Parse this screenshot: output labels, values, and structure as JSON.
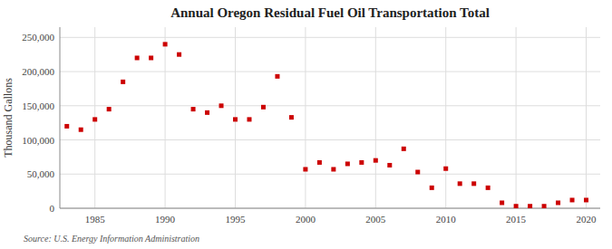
{
  "chart_data": {
    "type": "scatter",
    "title": "Annual Oregon Residual Fuel Oil Transportation Total",
    "y_label": "Thousand Gallons",
    "annotations": [
      "Source: U.S. Energy Information Administration"
    ],
    "x": [
      1983,
      1984,
      1985,
      1986,
      1987,
      1988,
      1989,
      1990,
      1991,
      1992,
      1993,
      1994,
      1995,
      1996,
      1997,
      1998,
      1999,
      2000,
      2001,
      2002,
      2003,
      2004,
      2005,
      2006,
      2007,
      2008,
      2009,
      2010,
      2011,
      2012,
      2013,
      2014,
      2015,
      2016,
      2017,
      2018,
      2019,
      2020
    ],
    "values": [
      120000,
      115000,
      130000,
      145000,
      185000,
      220000,
      220000,
      240000,
      225000,
      145000,
      140000,
      150000,
      130000,
      130000,
      148000,
      193000,
      133000,
      57000,
      67000,
      57000,
      65000,
      67000,
      70000,
      63000,
      87000,
      53000,
      30000,
      58000,
      36000,
      36000,
      30000,
      8000,
      3000,
      3000,
      3000,
      8000,
      12000,
      12000
    ],
    "color": "#cc0000",
    "marker": "square",
    "xlim": [
      1982.5,
      2021
    ],
    "ylim": [
      0,
      265000
    ],
    "xticks": [
      1985,
      1990,
      1995,
      2000,
      2005,
      2010,
      2015,
      2020
    ],
    "yticks": [
      0,
      {
        "value": 50000,
        "label": "50,000"
      },
      {
        "value": 100000,
        "label": "100,000"
      },
      {
        "value": 150000,
        "label": "150,000"
      },
      {
        "value": 200000,
        "label": "200,000"
      },
      {
        "value": 250000,
        "label": "250,000"
      }
    ],
    "grid": true
  }
}
